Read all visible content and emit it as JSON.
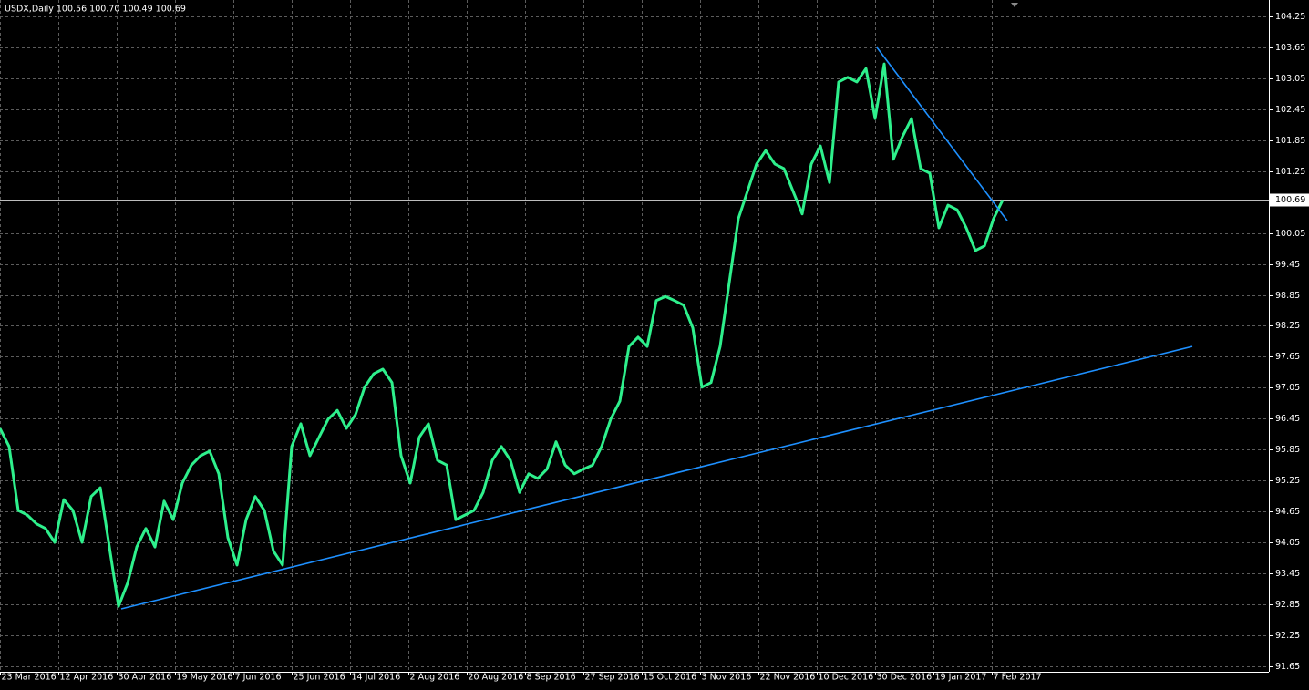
{
  "chart_data": {
    "type": "line",
    "title": "USDX,Daily  100.56 100.70 100.49 100.69",
    "series": [
      {
        "name": "USDX",
        "color": "#2ef08c",
        "values": [
          96.26,
          95.91,
          94.67,
          94.58,
          94.41,
          94.32,
          94.05,
          94.88,
          94.67,
          94.05,
          94.94,
          95.11,
          93.96,
          92.81,
          93.26,
          93.96,
          94.32,
          93.96,
          94.85,
          94.49,
          95.2,
          95.55,
          95.73,
          95.82,
          95.38,
          94.14,
          93.61,
          94.49,
          94.94,
          94.67,
          93.88,
          93.61,
          95.91,
          96.35,
          95.73,
          96.09,
          96.44,
          96.61,
          96.26,
          96.53,
          97.06,
          97.32,
          97.41,
          97.15,
          95.73,
          95.2,
          96.09,
          96.35,
          95.64,
          95.55,
          94.49,
          94.58,
          94.67,
          95.02,
          95.64,
          95.91,
          95.64,
          95.02,
          95.38,
          95.29,
          95.47,
          96.0,
          95.55,
          95.38,
          95.47,
          95.55,
          95.91,
          96.44,
          96.79,
          97.85,
          98.03,
          97.85,
          98.74,
          98.82,
          98.74,
          98.65,
          98.21,
          97.06,
          97.15,
          97.85,
          99.09,
          100.33,
          100.86,
          101.39,
          101.65,
          101.39,
          101.3,
          100.86,
          100.42,
          101.39,
          101.74,
          101.03,
          102.98,
          103.07,
          102.98,
          103.24,
          102.27,
          103.33,
          101.48,
          101.92,
          102.27,
          101.3,
          101.21,
          100.15,
          100.59,
          100.5,
          100.15,
          99.71,
          99.8,
          100.33,
          100.69
        ]
      }
    ],
    "trendlines": [
      {
        "color": "#1e90ff",
        "x": [
          13.3,
          130.8
        ],
        "y": [
          92.76,
          97.85
        ]
      },
      {
        "color": "#1e90ff",
        "x": [
          96.2,
          110.5
        ],
        "y": [
          103.65,
          100.29
        ]
      }
    ],
    "last_price": 100.69,
    "xlim": [
      0,
      139.2
    ],
    "xticks": [
      {
        "value": 0,
        "label": "23 Mar 2016"
      },
      {
        "value": 6.4,
        "label": "12 Apr 2016"
      },
      {
        "value": 12.8,
        "label": "30 Apr 2016"
      },
      {
        "value": 19.2,
        "label": "19 May 2016"
      },
      {
        "value": 25.6,
        "label": "7 Jun 2016"
      },
      {
        "value": 32,
        "label": "25 Jun 2016"
      },
      {
        "value": 38.4,
        "label": "14 Jul 2016"
      },
      {
        "value": 44.8,
        "label": "2 Aug 2016"
      },
      {
        "value": 51.2,
        "label": "20 Aug 2016"
      },
      {
        "value": 57.6,
        "label": "8 Sep 2016"
      },
      {
        "value": 64,
        "label": "27 Sep 2016"
      },
      {
        "value": 70.4,
        "label": "15 Oct 2016"
      },
      {
        "value": 76.8,
        "label": "3 Nov 2016"
      },
      {
        "value": 83.2,
        "label": "22 Nov 2016"
      },
      {
        "value": 89.6,
        "label": "10 Dec 2016"
      },
      {
        "value": 96,
        "label": "30 Dec 2016"
      },
      {
        "value": 102.4,
        "label": "19 Jan 2017"
      },
      {
        "value": 108.8,
        "label": "7 Feb 2017"
      }
    ],
    "ylim": [
      91.54,
      104.57
    ],
    "yticks": [
      104.25,
      103.65,
      103.05,
      102.45,
      101.85,
      101.25,
      100.05,
      99.45,
      98.85,
      98.25,
      97.65,
      97.05,
      96.45,
      95.85,
      95.25,
      94.65,
      94.05,
      93.45,
      92.85,
      92.25,
      91.65
    ],
    "grid": true
  }
}
